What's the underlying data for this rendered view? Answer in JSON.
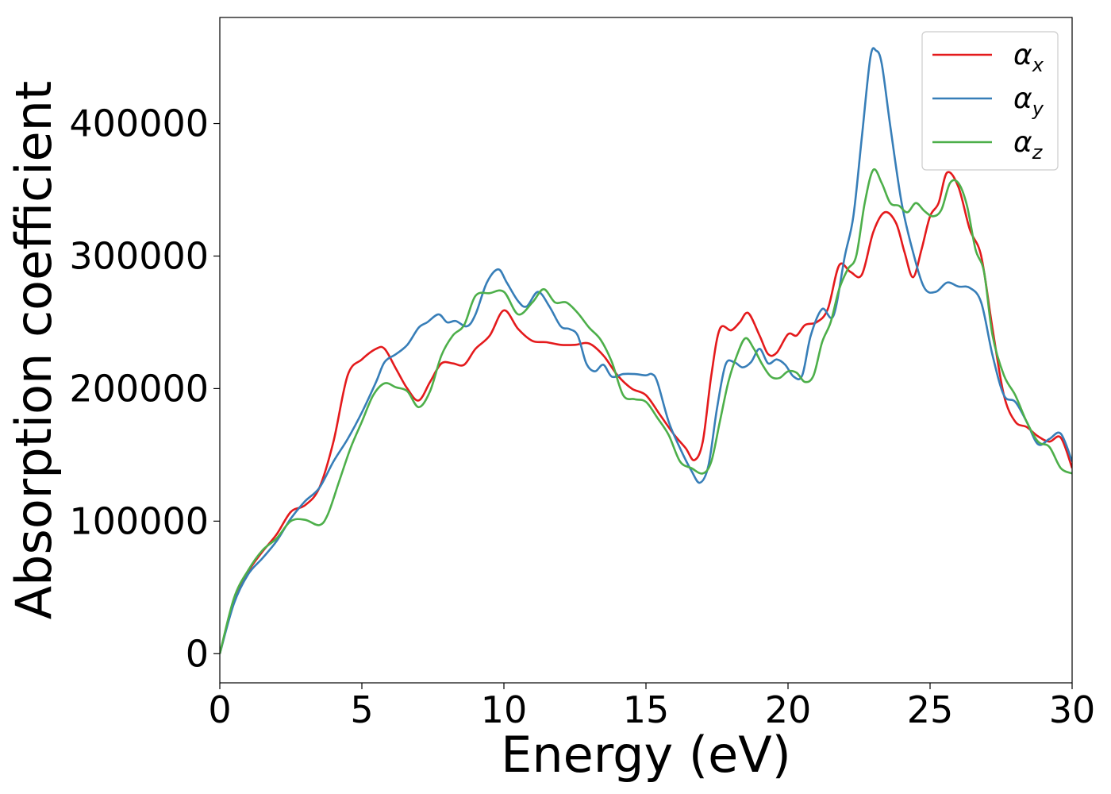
{
  "chart_data": {
    "type": "line",
    "xlabel": "Energy (eV)",
    "ylabel": "Absorption coefficient",
    "xlim": [
      0,
      30
    ],
    "ylim": [
      -22000,
      480000
    ],
    "xticks": [
      "0",
      "5",
      "10",
      "15",
      "20",
      "25",
      "30"
    ],
    "xtick_values": [
      0,
      5,
      10,
      15,
      20,
      25,
      30
    ],
    "yticks": [
      "0",
      "100000",
      "200000",
      "300000",
      "400000"
    ],
    "ytick_values": [
      0,
      100000,
      200000,
      300000,
      400000
    ],
    "grid": false,
    "legend_position": "top-right",
    "series": [
      {
        "name": "α",
        "subscript": "x",
        "color": "#e41a1c",
        "x": [
          0,
          0.5,
          1,
          1.5,
          2,
          2.5,
          3,
          3.5,
          4,
          4.5,
          5,
          5.5,
          5.8,
          6.2,
          6.6,
          7,
          7.4,
          7.8,
          8.2,
          8.6,
          9,
          9.5,
          10,
          10.5,
          11,
          11.5,
          12,
          12.5,
          13,
          13.5,
          14,
          14.5,
          15,
          15.5,
          16,
          16.4,
          16.7,
          17,
          17.3,
          17.6,
          18,
          18.3,
          18.6,
          19,
          19.3,
          19.6,
          20,
          20.3,
          20.6,
          21,
          21.4,
          21.8,
          22.2,
          22.6,
          23,
          23.4,
          23.8,
          24.1,
          24.4,
          24.7,
          25,
          25.3,
          25.6,
          26,
          26.4,
          26.8,
          27.2,
          27.6,
          28,
          28.4,
          28.8,
          29.2,
          29.6,
          30
        ],
        "y": [
          0,
          40000,
          62000,
          77000,
          90000,
          107000,
          112000,
          125000,
          160000,
          210000,
          222000,
          230000,
          230000,
          215000,
          200000,
          191000,
          205000,
          219000,
          219000,
          218000,
          230000,
          240000,
          259000,
          245000,
          236000,
          235000,
          233000,
          233000,
          234000,
          225000,
          210000,
          200000,
          195000,
          180000,
          165000,
          155000,
          146000,
          160000,
          210000,
          245000,
          244000,
          250000,
          257000,
          240000,
          226000,
          227000,
          241000,
          240000,
          248000,
          250000,
          260000,
          293000,
          288000,
          286000,
          318000,
          333000,
          325000,
          303000,
          284000,
          305000,
          330000,
          340000,
          363000,
          352000,
          320000,
          300000,
          245000,
          195000,
          175000,
          171000,
          164000,
          160000,
          163000,
          140000
        ]
      },
      {
        "name": "α",
        "subscript": "y",
        "color": "#377eb8",
        "x": [
          0,
          0.5,
          1,
          1.5,
          2,
          2.5,
          3,
          3.5,
          4,
          4.5,
          5,
          5.5,
          5.8,
          6.2,
          6.6,
          7,
          7.3,
          7.7,
          8,
          8.3,
          8.7,
          9,
          9.4,
          9.8,
          10.1,
          10.5,
          10.8,
          11.2,
          11.6,
          12,
          12.3,
          12.6,
          12.9,
          13.2,
          13.5,
          13.8,
          14.2,
          14.6,
          15,
          15.2,
          15.4,
          15.8,
          16.2,
          16.6,
          16.9,
          17.2,
          17.5,
          17.8,
          18.1,
          18.4,
          18.7,
          19,
          19.3,
          19.6,
          19.9,
          20.2,
          20.5,
          20.8,
          21.2,
          21.6,
          22,
          22.3,
          22.6,
          22.9,
          23.1,
          23.3,
          23.6,
          24,
          24.4,
          24.8,
          25.2,
          25.6,
          26,
          26.4,
          26.8,
          27.2,
          27.6,
          28,
          28.4,
          28.8,
          29.2,
          29.6,
          30
        ],
        "y": [
          0,
          38000,
          60000,
          72000,
          85000,
          102000,
          115000,
          125000,
          145000,
          162000,
          182000,
          205000,
          220000,
          226000,
          233000,
          246000,
          250000,
          256000,
          250000,
          251000,
          247000,
          256000,
          280000,
          290000,
          280000,
          266000,
          262000,
          273000,
          262000,
          247000,
          245000,
          240000,
          219000,
          213000,
          218000,
          209000,
          211000,
          211000,
          210000,
          211000,
          205000,
          175000,
          155000,
          138000,
          129000,
          142000,
          185000,
          218000,
          220000,
          216000,
          220000,
          230000,
          219000,
          222000,
          218000,
          209000,
          210000,
          240000,
          260000,
          255000,
          300000,
          330000,
          390000,
          450000,
          455000,
          445000,
          398000,
          340000,
          303000,
          276000,
          273000,
          280000,
          277000,
          276000,
          265000,
          225000,
          195000,
          190000,
          175000,
          158000,
          162000,
          166000,
          145000
        ]
      },
      {
        "name": "α",
        "subscript": "z",
        "color": "#4daf4a",
        "x": [
          0,
          0.5,
          1,
          1.5,
          2,
          2.5,
          3,
          3.5,
          3.8,
          4.2,
          4.6,
          5,
          5.4,
          5.8,
          6.2,
          6.6,
          7,
          7.4,
          7.8,
          8.2,
          8.6,
          9,
          9.5,
          10,
          10.5,
          11,
          11.4,
          11.8,
          12.2,
          12.6,
          13,
          13.4,
          13.8,
          14.2,
          14.6,
          15,
          15.4,
          15.8,
          16.2,
          16.6,
          17,
          17.3,
          17.6,
          17.9,
          18.2,
          18.5,
          18.8,
          19.1,
          19.4,
          19.7,
          20,
          20.3,
          20.6,
          20.9,
          21.2,
          21.5,
          21.8,
          22.1,
          22.4,
          22.7,
          23,
          23.3,
          23.6,
          23.9,
          24.2,
          24.5,
          24.8,
          25.1,
          25.4,
          25.7,
          26,
          26.3,
          26.6,
          26.9,
          27.2,
          27.6,
          28,
          28.4,
          28.8,
          29.2,
          29.6,
          30
        ],
        "y": [
          0,
          42000,
          63000,
          78000,
          87000,
          100000,
          101000,
          97000,
          105000,
          130000,
          155000,
          175000,
          195000,
          204000,
          201000,
          198000,
          186000,
          198000,
          225000,
          240000,
          248000,
          270000,
          272000,
          273000,
          256000,
          265000,
          275000,
          265000,
          265000,
          257000,
          246000,
          237000,
          220000,
          195000,
          192000,
          190000,
          178000,
          165000,
          145000,
          140000,
          136000,
          145000,
          175000,
          205000,
          225000,
          238000,
          230000,
          218000,
          209000,
          208000,
          213000,
          212000,
          205000,
          210000,
          235000,
          250000,
          275000,
          290000,
          300000,
          340000,
          365000,
          355000,
          340000,
          338000,
          333000,
          340000,
          334000,
          330000,
          335000,
          355000,
          355000,
          338000,
          305000,
          288000,
          240000,
          210000,
          195000,
          175000,
          160000,
          156000,
          140000,
          136000
        ]
      }
    ]
  }
}
